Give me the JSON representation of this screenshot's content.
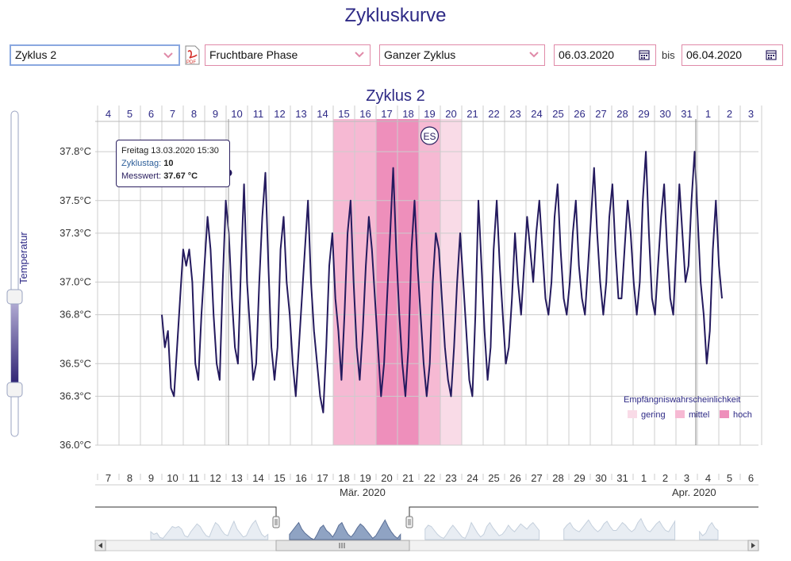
{
  "page": {
    "title": "Zykluskurve"
  },
  "controls": {
    "cycle_select": "Zyklus 2",
    "phase_select": "Fruchtbare Phase",
    "range_select": "Ganzer Zyklus",
    "date_from": "06.03.2020",
    "date_separator": "bis",
    "date_to": "06.04.2020",
    "pdf_label": "PDF"
  },
  "tooltip": {
    "line1": "Freitag 13.03.2020 15:30",
    "day_key": "Zyklustag:",
    "day_value": "10",
    "value_key": "Messwert:",
    "value_value": "37.67 °C"
  },
  "legend": {
    "title": "Empfängniswahrscheinlichkeit",
    "items": [
      {
        "label": "gering",
        "color": "#f9dbe7"
      },
      {
        "label": "mittel",
        "color": "#f6b9d3"
      },
      {
        "label": "hoch",
        "color": "#ee8fbb"
      }
    ]
  },
  "colors": {
    "line": "#241a5e",
    "grid": "#cccccc",
    "accent": "#e08aa8"
  },
  "chart_data": {
    "type": "line",
    "title": "Zyklus 2",
    "ylabel": "Temperatur",
    "ylim": [
      36.0,
      38.0
    ],
    "y_ticks": [
      "36.0°C",
      "36.3°C",
      "36.5°C",
      "36.8°C",
      "37.0°C",
      "37.3°C",
      "37.5°C",
      "37.8°C"
    ],
    "top_axis_ticks": [
      "4",
      "5",
      "6",
      "7",
      "8",
      "9",
      "10",
      "11",
      "12",
      "13",
      "14",
      "15",
      "16",
      "17",
      "18",
      "19",
      "20",
      "21",
      "22",
      "23",
      "24",
      "25",
      "26",
      "27",
      "28",
      "29",
      "30",
      "31",
      "1",
      "2",
      "3"
    ],
    "bottom_axis_ticks": [
      "7",
      "8",
      "9",
      "10",
      "11",
      "12",
      "13",
      "14",
      "15",
      "16",
      "17",
      "18",
      "19",
      "20",
      "21",
      "22",
      "23",
      "24",
      "25",
      "26",
      "27",
      "28",
      "29",
      "30",
      "31",
      "1",
      "2",
      "3",
      "4",
      "5",
      "6"
    ],
    "bottom_axis_months": [
      "Mär. 2020",
      "Apr. 2020"
    ],
    "fertility_bands": [
      {
        "from_cycle_day": 15,
        "to_cycle_day": 16,
        "level": "mittel"
      },
      {
        "from_cycle_day": 17,
        "to_cycle_day": 18,
        "level": "hoch"
      },
      {
        "from_cycle_day": 19,
        "to_cycle_day": 19,
        "level": "mittel"
      },
      {
        "from_cycle_day": 20,
        "to_cycle_day": 20,
        "level": "gering"
      }
    ],
    "event_marker": {
      "label": "ES",
      "cycle_day": 19
    },
    "highlight_point": {
      "cycle_day": 10,
      "value": 37.67
    },
    "series": [
      {
        "values": [
          36.8,
          36.6,
          36.7,
          36.35,
          36.3,
          36.6,
          36.9,
          37.2,
          37.1,
          37.2,
          37.0,
          36.5,
          36.4,
          36.8,
          37.1,
          37.4,
          37.2,
          36.8,
          36.5,
          36.4,
          37.0,
          37.5,
          37.3,
          36.9,
          36.6,
          36.5,
          37.1,
          37.6,
          37.0,
          36.7,
          36.4,
          36.5,
          37.0,
          37.4,
          37.67,
          37.1,
          36.6,
          36.4,
          36.6,
          37.2,
          37.4,
          37.0,
          36.8,
          36.5,
          36.3,
          36.6,
          36.9,
          37.2,
          37.5,
          37.0,
          36.7,
          36.5,
          36.3,
          36.2,
          36.6,
          37.1,
          37.3,
          36.9,
          36.7,
          36.4,
          36.8,
          37.3,
          37.5,
          37.0,
          36.6,
          36.4,
          36.7,
          37.1,
          37.4,
          37.2,
          36.9,
          36.6,
          36.3,
          36.5,
          36.9,
          37.3,
          37.7,
          37.2,
          36.8,
          36.5,
          36.3,
          36.6,
          37.2,
          37.5,
          37.1,
          36.8,
          36.5,
          36.3,
          36.5,
          37.0,
          37.3,
          37.2,
          36.9,
          36.6,
          36.4,
          36.3,
          36.6,
          37.0,
          37.3,
          37.0,
          36.7,
          36.4,
          36.3,
          36.8,
          37.5,
          37.1,
          36.7,
          36.4,
          36.6,
          37.2,
          37.5,
          37.1,
          36.8,
          36.5,
          36.6,
          36.9,
          37.3,
          37.0,
          36.8,
          37.1,
          37.4,
          37.2,
          37.0,
          37.3,
          37.5,
          37.2,
          36.9,
          36.8,
          37.0,
          37.4,
          37.6,
          37.2,
          36.9,
          36.8,
          37.0,
          37.3,
          37.5,
          37.1,
          36.9,
          36.8,
          37.1,
          37.4,
          37.7,
          37.3,
          37.0,
          36.8,
          37.0,
          37.4,
          37.6,
          37.2,
          36.9,
          36.9,
          37.2,
          37.5,
          37.3,
          37.0,
          36.8,
          37.0,
          37.5,
          37.8,
          37.3,
          36.9,
          36.8,
          37.1,
          37.4,
          37.6,
          37.2,
          36.9,
          36.8,
          37.2,
          37.6,
          37.3,
          37.0,
          37.1,
          37.5,
          37.8,
          37.4,
          37.0,
          36.8,
          36.5,
          36.7,
          37.2,
          37.5,
          37.1,
          36.9
        ]
      }
    ]
  }
}
